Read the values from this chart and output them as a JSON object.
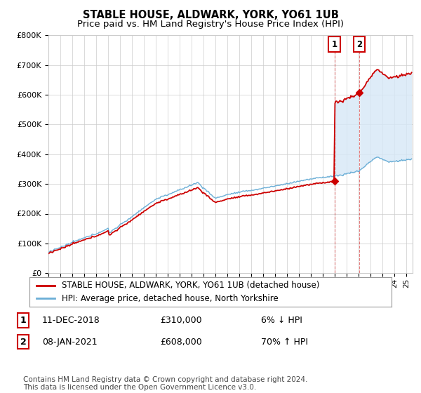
{
  "title": "STABLE HOUSE, ALDWARK, YORK, YO61 1UB",
  "subtitle": "Price paid vs. HM Land Registry's House Price Index (HPI)",
  "hpi_label": "HPI: Average price, detached house, North Yorkshire",
  "house_label": "STABLE HOUSE, ALDWARK, YORK, YO61 1UB (detached house)",
  "transaction1_date": "11-DEC-2018",
  "transaction1_price": "£310,000",
  "transaction1_hpi": "6% ↓ HPI",
  "transaction2_date": "08-JAN-2021",
  "transaction2_price": "£608,000",
  "transaction2_hpi": "70% ↑ HPI",
  "footer": "Contains HM Land Registry data © Crown copyright and database right 2024.\nThis data is licensed under the Open Government Licence v3.0.",
  "ylim": [
    0,
    800000
  ],
  "yticks": [
    0,
    100000,
    200000,
    300000,
    400000,
    500000,
    600000,
    700000,
    800000
  ],
  "hpi_color": "#6aaed6",
  "house_color": "#cc0000",
  "shading_color": "#d6e8f7",
  "background_color": "#ffffff",
  "grid_color": "#cccccc",
  "legend_box_color": "#999999",
  "transaction_box_color": "#cc0000",
  "title_fontsize": 10.5,
  "subtitle_fontsize": 9.5,
  "tick_fontsize": 8,
  "legend_fontsize": 8.5,
  "footer_fontsize": 7.5,
  "t1_year": 2018.958,
  "t2_year": 2021.042,
  "t1_price": 310000,
  "t2_price": 608000
}
